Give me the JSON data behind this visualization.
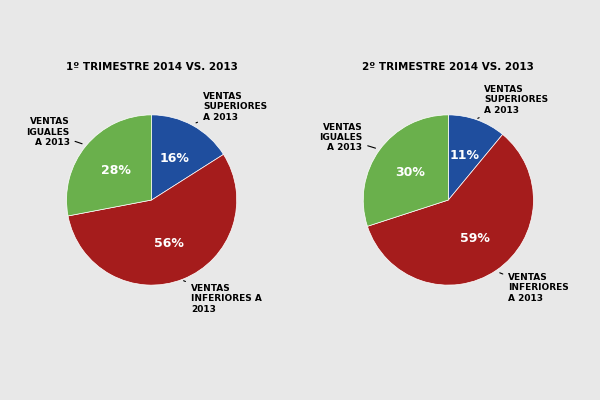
{
  "chart1": {
    "title": "1º TRIMESTRE 2014 VS. 2013",
    "values": [
      16,
      56,
      28
    ],
    "colors": [
      "#1f4e9e",
      "#a51c1c",
      "#6ab04c"
    ],
    "labels_inside": [
      "16%",
      "56%",
      "28%"
    ],
    "labels_outside": [
      "VENTAS\nSUPERIORES\nA 2013",
      "VENTAS\nINFERIORES A\n2013",
      "VENTAS\nIGUALES\nA 2013"
    ],
    "startangle": 90
  },
  "chart2": {
    "title": "2º TRIMESTRE 2014 VS. 2013",
    "values": [
      11,
      59,
      30
    ],
    "colors": [
      "#1f4e9e",
      "#a51c1c",
      "#6ab04c"
    ],
    "labels_inside": [
      "11%",
      "59%",
      "30%"
    ],
    "labels_outside": [
      "VENTAS\nSUPERIORES\nA 2013",
      "VENTAS\nINFERIORES\nA 2013",
      "VENTAS\nIGUALES\nA 2013"
    ],
    "startangle": 90
  },
  "bg_color": "#e8e8e8",
  "white_color": "#ffffff",
  "title_fontsize": 7.5,
  "label_fontsize": 6.5,
  "pct_fontsize": 9
}
